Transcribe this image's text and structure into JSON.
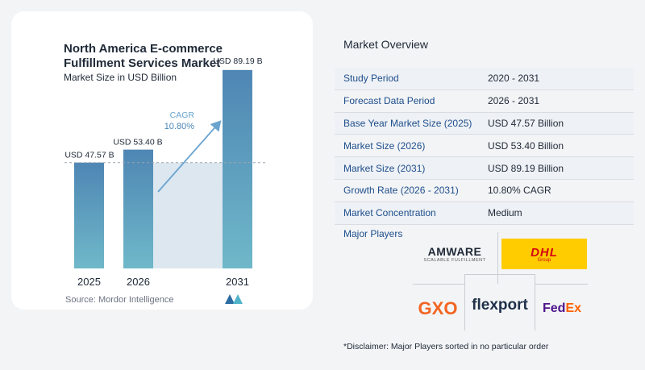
{
  "title": "North America E-commerce Fulfillment Services Market",
  "subtitle": "Market Size in USD Billion",
  "source": "Source: Mordor Intelligence",
  "chart_data": {
    "type": "bar",
    "categories": [
      "2025",
      "2026",
      "2031"
    ],
    "values": [
      47.57,
      53.4,
      89.19
    ],
    "value_labels": [
      "USD 47.57 B",
      "USD 53.40 B",
      "USD 89.19 B"
    ],
    "cagr_label": "CAGR",
    "cagr_value": "10.80%",
    "title": "North America E-commerce Fulfillment Services Market",
    "ylabel": "Market Size in USD Billion",
    "colors": {
      "bar_top": "#4f86b4",
      "bar_bottom": "#6fb8c9",
      "shade": "#dde7f0",
      "baseline_dash": "#9aa5b1",
      "arrow": "#6aa4cf"
    }
  },
  "overview": {
    "title": "Market Overview",
    "rows": [
      {
        "key": "Study Period",
        "value": "2020 - 2031"
      },
      {
        "key": "Forecast Data Period",
        "value": "2026 - 2031"
      },
      {
        "key": "Base Year Market Size (2025)",
        "value": "USD 47.57 Billion"
      },
      {
        "key": "Market Size (2026)",
        "value": "USD 53.40 Billion"
      },
      {
        "key": "Market Size (2031)",
        "value": "USD 89.19 Billion"
      },
      {
        "key": "Growth Rate (2026 - 2031)",
        "value": "10.80% CAGR"
      },
      {
        "key": "Market Concentration",
        "value": "Medium"
      }
    ]
  },
  "players": {
    "title": "Major Players",
    "logos": [
      {
        "name": "AMWARE",
        "tagline": "SCALABLE FULFILLMENT"
      },
      {
        "name": "DHL",
        "tagline": "Group"
      },
      {
        "name": "GXO"
      },
      {
        "name": "flexport"
      },
      {
        "name": "FedEx"
      }
    ]
  },
  "disclaimer": "*Disclaimer: Major Players sorted in no particular order"
}
